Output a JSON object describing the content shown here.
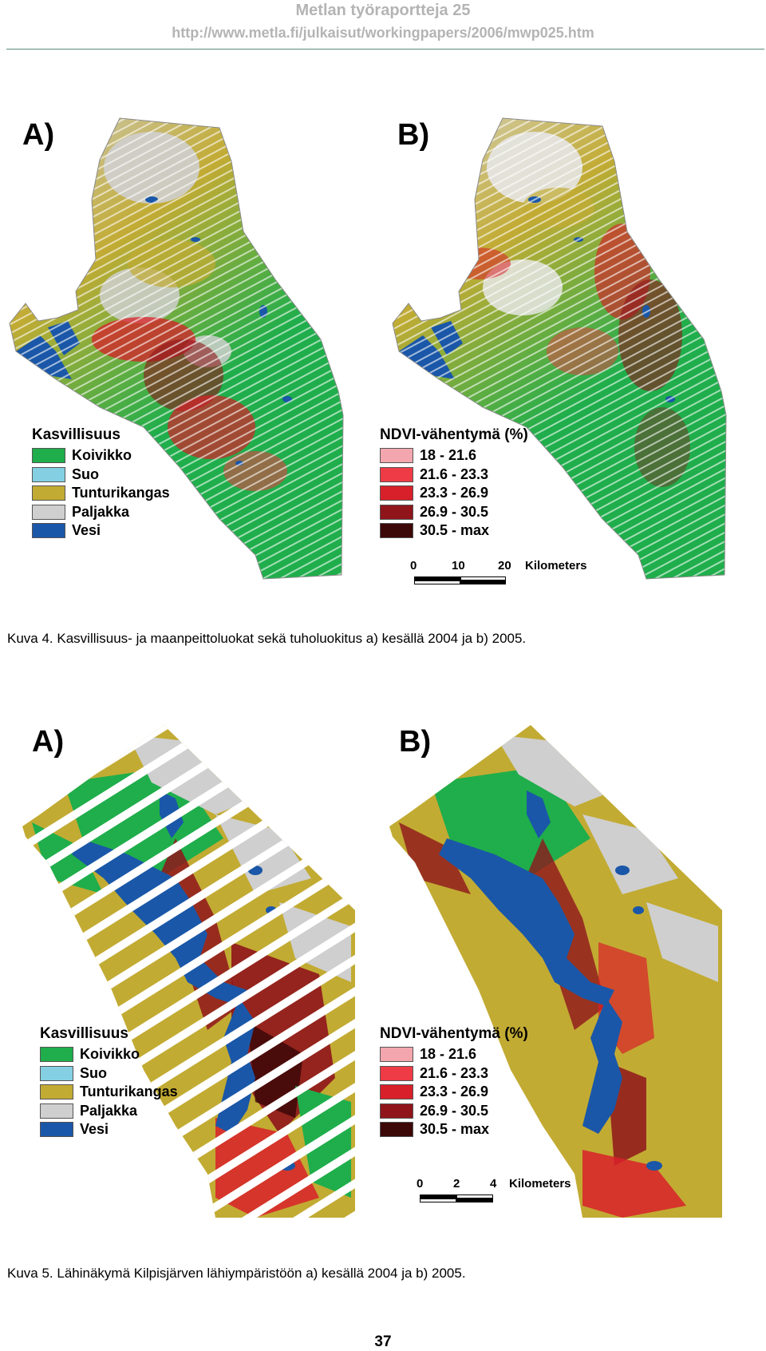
{
  "header": {
    "title": "Metlan työraportteja 25",
    "url": "http://www.metla.fi/julkaisut/workingpapers/2006/mwp025.htm"
  },
  "colors": {
    "koivikko": "#1fae4b",
    "suo": "#84d0e2",
    "tunturikangas": "#c2ab33",
    "paljakka": "#cfcfcf",
    "vesi": "#1a57a8",
    "ndvi_1": "#f3a6ad",
    "ndvi_2": "#ee3b45",
    "ndvi_3": "#d8202a",
    "ndvi_4": "#8f151b",
    "ndvi_5": "#3d0808"
  },
  "figure4": {
    "panel_a_label": "A)",
    "panel_b_label": "B)",
    "legend_veg": {
      "title": "Kasvillisuus",
      "items": [
        {
          "label": "Koivikko",
          "color": "#1fae4b"
        },
        {
          "label": "Suo",
          "color": "#84d0e2"
        },
        {
          "label": "Tunturikangas",
          "color": "#c2ab33"
        },
        {
          "label": "Paljakka",
          "color": "#cfcfcf"
        },
        {
          "label": "Vesi",
          "color": "#1a57a8"
        }
      ]
    },
    "legend_ndvi": {
      "title": "NDVI-vähentymä (%)",
      "items": [
        {
          "label": "18 - 21.6",
          "color": "#f3a6ad"
        },
        {
          "label": "21.6 - 23.3",
          "color": "#ee3b45"
        },
        {
          "label": "23.3 - 26.9",
          "color": "#d8202a"
        },
        {
          "label": "26.9 - 30.5",
          "color": "#8f151b"
        },
        {
          "label": "30.5 - max",
          "color": "#3d0808"
        }
      ]
    },
    "scale": {
      "t0": "0",
      "t1": "10",
      "t2": "20",
      "unit": "Kilometers"
    },
    "caption": "Kuva 4. Kasvillisuus- ja maanpeittoluokat sekä tuholuokitus a) kesällä 2004 ja b) 2005."
  },
  "figure5": {
    "panel_a_label": "A)",
    "panel_b_label": "B)",
    "legend_veg": {
      "title": "Kasvillisuus",
      "items": [
        {
          "label": "Koivikko",
          "color": "#1fae4b"
        },
        {
          "label": "Suo",
          "color": "#84d0e2"
        },
        {
          "label": "Tunturikangas",
          "color": "#c2ab33"
        },
        {
          "label": "Paljakka",
          "color": "#cfcfcf"
        },
        {
          "label": "Vesi",
          "color": "#1a57a8"
        }
      ]
    },
    "legend_ndvi": {
      "title": "NDVI-vähentymä (%)",
      "items": [
        {
          "label": "18 - 21.6",
          "color": "#f3a6ad"
        },
        {
          "label": "21.6 - 23.3",
          "color": "#ee3b45"
        },
        {
          "label": "23.3 - 26.9",
          "color": "#d8202a"
        },
        {
          "label": "26.9 - 30.5",
          "color": "#8f151b"
        },
        {
          "label": "30.5 - max",
          "color": "#3d0808"
        }
      ]
    },
    "scale": {
      "t0": "0",
      "t1": "2",
      "t2": "4",
      "unit": "Kilometers"
    },
    "caption": "Kuva 5. Lähinäkymä Kilpisjärven lähiympäristöön a) kesällä 2004 ja b) 2005."
  },
  "page_number": "37"
}
